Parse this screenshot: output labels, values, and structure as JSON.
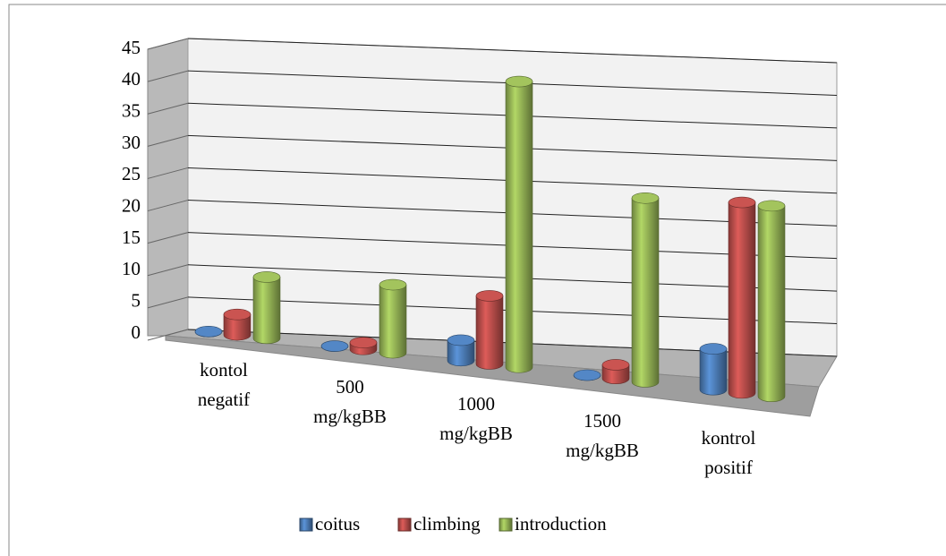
{
  "chart_data": {
    "type": "bar3d",
    "categories": [
      "kontol negatif",
      "500 mg/kgBB",
      "1000 mg/kgBB",
      "1500 mg/kgBB",
      "kontrol positif"
    ],
    "series": [
      {
        "name": "coitus",
        "color": "#4f81bd",
        "values": [
          0,
          0,
          3,
          0,
          6
        ]
      },
      {
        "name": "climbing",
        "color": "#c0504d",
        "values": [
          3,
          1,
          10,
          2,
          28
        ]
      },
      {
        "name": "introduction",
        "color": "#9bbb59",
        "values": [
          9,
          10,
          42,
          27,
          28
        ]
      }
    ],
    "ylim": [
      0,
      45
    ],
    "yticks": [
      0,
      5,
      10,
      15,
      20,
      25,
      30,
      35,
      40,
      45
    ],
    "grid": true,
    "legend": "bottom"
  }
}
